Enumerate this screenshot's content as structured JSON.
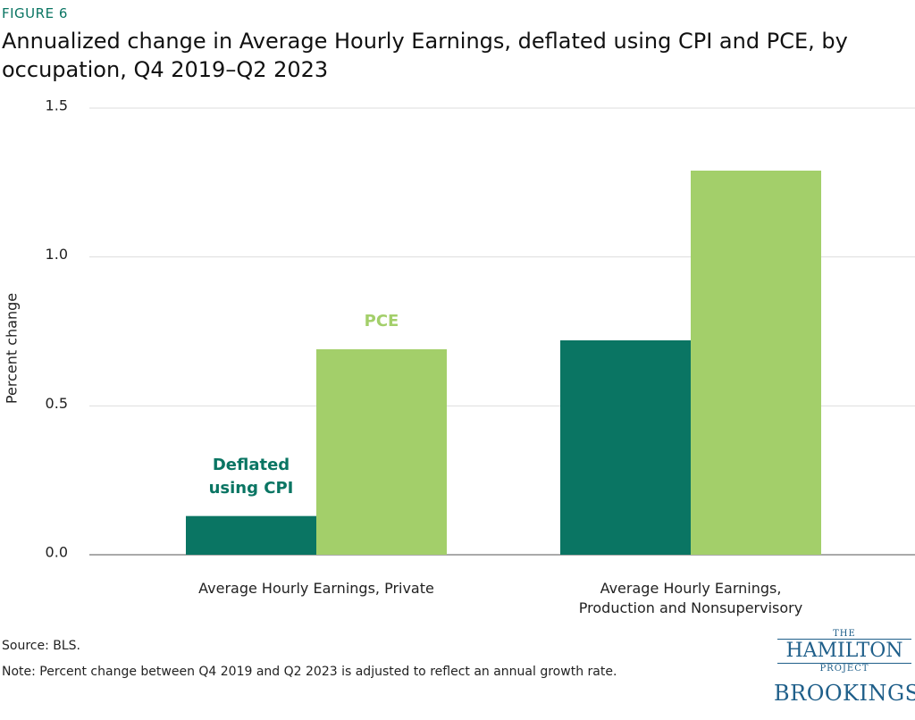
{
  "chart_data": {
    "type": "bar",
    "figure_label": "FIGURE 6",
    "title": "Annualized change in Average Hourly Earnings, deflated using CPI and PCE, by occupation, Q4 2019–Q2 2023",
    "y_label": "Percent change",
    "categories": [
      "Average Hourly Earnings, Private",
      "Average Hourly Earnings,\nProduction and Nonsupervisory"
    ],
    "series": [
      {
        "name": "Deflated using CPI",
        "color": "#0a7563",
        "values": [
          0.13,
          0.72
        ]
      },
      {
        "name": "PCE",
        "color": "#a3cf6a",
        "values": [
          0.69,
          1.29
        ]
      }
    ],
    "ylim": [
      0,
      1.5
    ],
    "yticks": [
      {
        "value": 0,
        "label": "0.0"
      },
      0.5,
      {
        "value": 1,
        "label": "1.0"
      },
      1.5
    ],
    "grid": true,
    "source": "Source: BLS.",
    "note": "Note: Percent change between Q4 2019 and Q2 2023 is adjusted to reflect an annual growth rate.",
    "logo": {
      "the": "THE",
      "hamilton": "HAMILTON",
      "project": "PROJECT",
      "brookings": "BROOKINGS"
    }
  }
}
